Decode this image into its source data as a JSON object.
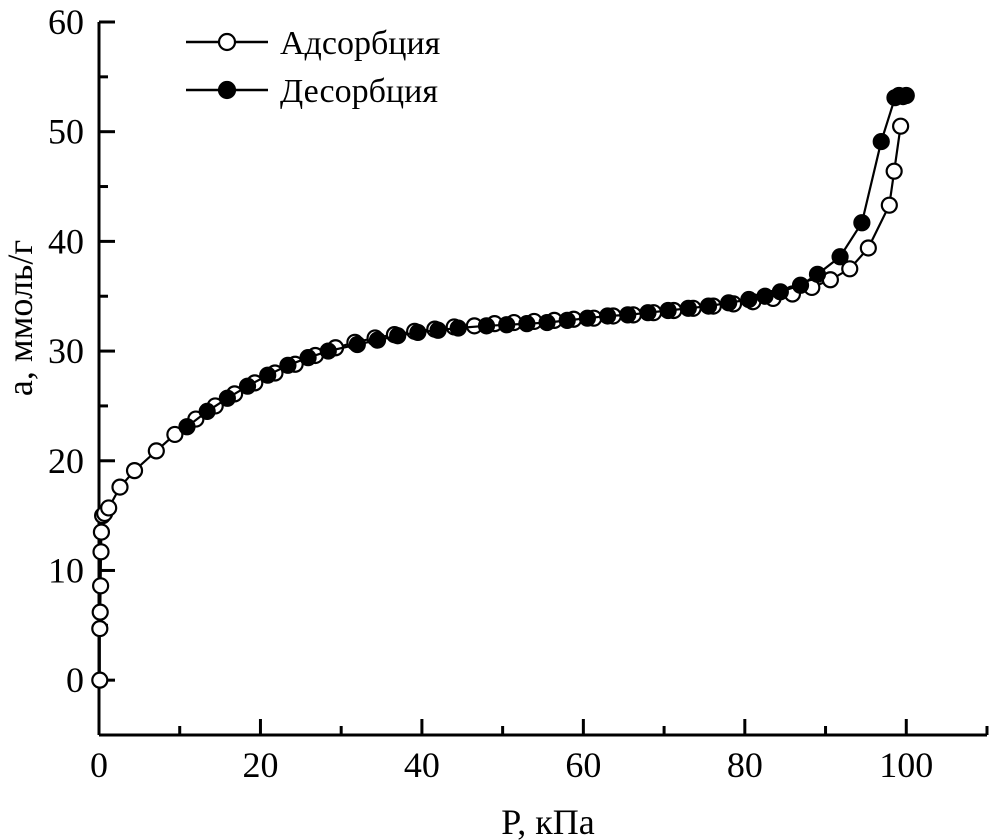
{
  "chart_data": {
    "type": "scatter",
    "xlabel": "P, кПа",
    "ylabel": "a, ммоль/г",
    "xlim": [
      0,
      110
    ],
    "ylim": [
      -5,
      60
    ],
    "xticks": [
      0,
      20,
      40,
      60,
      80,
      100
    ],
    "yticks": [
      0,
      10,
      20,
      30,
      40,
      50,
      60
    ],
    "xtick_labels": [
      "0",
      "20",
      "40",
      "60",
      "80",
      "100"
    ],
    "ytick_labels": [
      "0",
      "10",
      "20",
      "30",
      "40",
      "50",
      "60"
    ],
    "grid": false,
    "legend_position": "top-left",
    "series": [
      {
        "name": "Адсорбция",
        "marker": "open-circle",
        "color": "#000000",
        "x": [
          0.1,
          0.1,
          0.15,
          0.2,
          0.25,
          0.3,
          0.45,
          0.7,
          1.2,
          2.6,
          4.4,
          7.1,
          9.4,
          12.0,
          14.4,
          16.8,
          19.3,
          21.8,
          24.3,
          26.8,
          29.3,
          31.7,
          34.2,
          36.6,
          39.1,
          41.6,
          44.0,
          46.5,
          49.0,
          51.4,
          53.9,
          56.4,
          58.8,
          61.3,
          63.7,
          66.2,
          68.7,
          71.2,
          73.6,
          76.1,
          78.6,
          81.0,
          83.5,
          85.9,
          88.3,
          90.6,
          93.0,
          95.3,
          97.9,
          98.5,
          99.3
        ],
        "y": [
          0.0,
          4.7,
          6.2,
          8.6,
          11.7,
          13.5,
          15.0,
          15.2,
          15.7,
          17.6,
          19.1,
          20.9,
          22.4,
          23.8,
          25.0,
          26.1,
          27.1,
          28.0,
          28.8,
          29.6,
          30.3,
          30.8,
          31.2,
          31.5,
          31.8,
          32.0,
          32.2,
          32.3,
          32.5,
          32.6,
          32.7,
          32.8,
          32.9,
          33.0,
          33.2,
          33.3,
          33.5,
          33.7,
          33.9,
          34.1,
          34.3,
          34.5,
          34.8,
          35.2,
          35.8,
          36.5,
          37.5,
          39.4,
          43.3,
          46.4,
          50.5
        ]
      },
      {
        "name": "Десорбция",
        "marker": "filled-circle",
        "color": "#000000",
        "x": [
          10.9,
          13.4,
          15.9,
          18.4,
          20.9,
          23.4,
          25.9,
          28.4,
          32.0,
          34.5,
          37.0,
          39.5,
          42.0,
          44.5,
          48.0,
          50.5,
          53.0,
          55.5,
          58.0,
          60.5,
          63.0,
          65.5,
          68.0,
          70.5,
          73.0,
          75.5,
          78.0,
          80.5,
          82.5,
          84.4,
          86.9,
          89.0,
          91.8,
          94.5,
          96.9,
          98.6,
          99.1,
          99.6,
          100.0
        ],
        "y": [
          23.1,
          24.5,
          25.7,
          26.8,
          27.8,
          28.7,
          29.4,
          30.0,
          30.6,
          31.0,
          31.4,
          31.7,
          31.9,
          32.1,
          32.3,
          32.4,
          32.5,
          32.6,
          32.8,
          33.0,
          33.2,
          33.3,
          33.5,
          33.7,
          33.9,
          34.1,
          34.4,
          34.7,
          35.0,
          35.4,
          36.0,
          37.0,
          38.6,
          41.7,
          49.1,
          53.1,
          53.3,
          53.2,
          53.3
        ]
      }
    ]
  }
}
